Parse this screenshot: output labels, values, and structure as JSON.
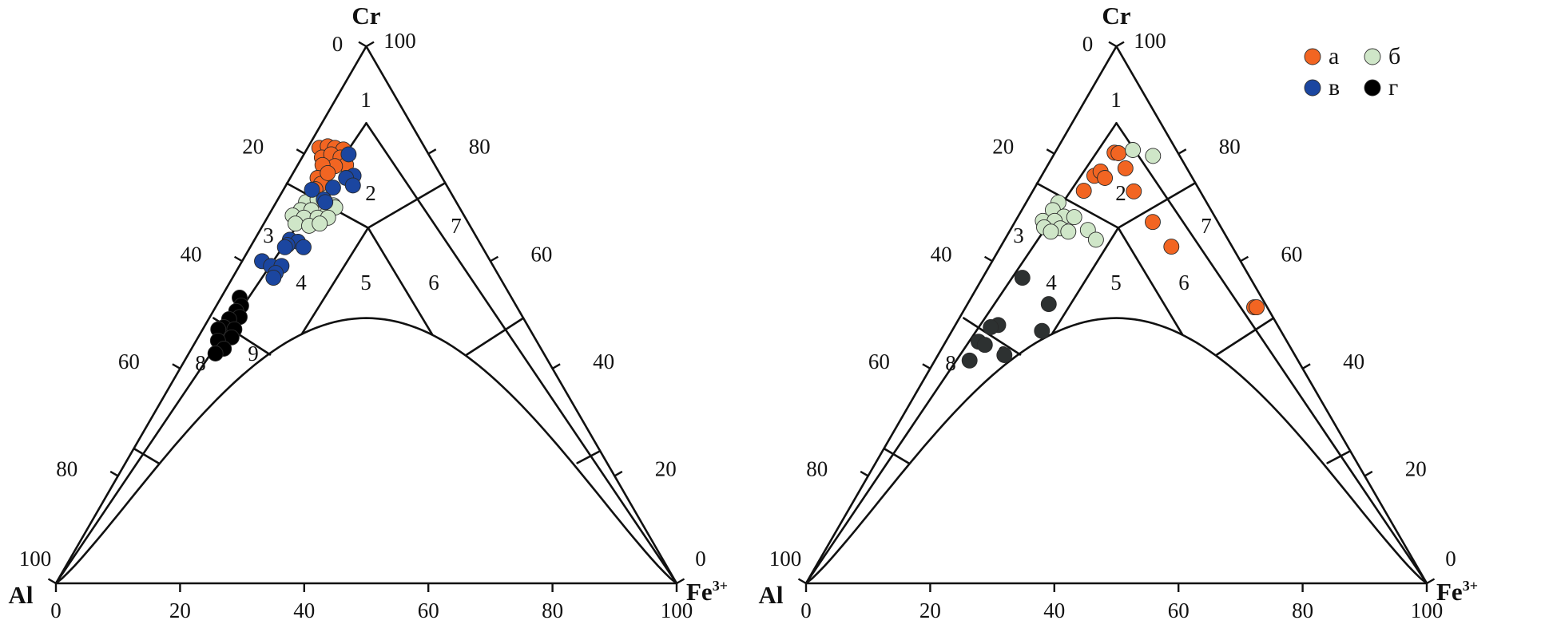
{
  "chart_data": [
    {
      "type": "ternary-scatter",
      "vertices": {
        "top": "Cr",
        "left": "Al",
        "right": "Fe",
        "right_sup": "3+"
      },
      "axis_ticks": {
        "left": [
          "0",
          "20",
          "40",
          "60",
          "80",
          "100"
        ],
        "right": [
          "100",
          "80",
          "60",
          "40",
          "20",
          "0"
        ],
        "bottom": [
          "0",
          "20",
          "40",
          "60",
          "80",
          "100"
        ]
      },
      "regions": [
        "1",
        "2",
        "3",
        "4",
        "5",
        "6",
        "7",
        "8",
        "9"
      ],
      "series": [
        {
          "name": "а",
          "color": "#f26522",
          "points": [
            [
              81.1,
              1.9
            ],
            [
              81.4,
              3.1
            ],
            [
              81.1,
              4.4
            ],
            [
              80.8,
              5.9
            ],
            [
              79.3,
              3.2
            ],
            [
              79.9,
              4.4
            ],
            [
              79.3,
              6.2
            ],
            [
              77.9,
              7.8
            ],
            [
              77.7,
              6.1
            ],
            [
              77.9,
              4.0
            ],
            [
              75.5,
              4.4
            ],
            [
              74.4,
              5.5
            ],
            [
              76.4,
              5.6
            ],
            [
              73.4,
              5.1
            ]
          ]
        },
        {
          "name": "б",
          "color": "#cfe6c8",
          "points": [
            [
              71.0,
              4.8
            ],
            [
              71.5,
              6.4
            ],
            [
              70.4,
              9.5
            ],
            [
              69.5,
              4.7
            ],
            [
              69.5,
              6.4
            ],
            [
              68.9,
              9.3
            ],
            [
              70.0,
              10.0
            ],
            [
              68.5,
              3.9
            ],
            [
              68.1,
              5.9
            ],
            [
              68.1,
              8.1
            ],
            [
              68.1,
              9.8
            ],
            [
              67.0,
              5.1
            ],
            [
              66.6,
              7.5
            ],
            [
              67.0,
              9.0
            ]
          ]
        },
        {
          "name": "в",
          "color": "#1b46a0",
          "points": [
            [
              79.9,
              7.2
            ],
            [
              75.9,
              10.0
            ],
            [
              75.5,
              9.0
            ],
            [
              74.1,
              10.8
            ],
            [
              73.7,
              7.8
            ],
            [
              73.3,
              4.6
            ],
            [
              71.5,
              7.4
            ],
            [
              71.0,
              7.9
            ],
            [
              64.0,
              5.7
            ],
            [
              63.6,
              7.2
            ],
            [
              62.6,
              8.6
            ],
            [
              63.0,
              5.8
            ],
            [
              62.6,
              5.6
            ],
            [
              60.0,
              3.2
            ],
            [
              59.1,
              5.1
            ],
            [
              59.1,
              6.8
            ],
            [
              57.8,
              6.5
            ],
            [
              56.9,
              6.6
            ]
          ]
        },
        {
          "name": "г",
          "color": "#000000",
          "points": [
            [
              53.2,
              3.0
            ],
            [
              51.7,
              4.0
            ],
            [
              50.7,
              3.7
            ],
            [
              49.6,
              4.8
            ],
            [
              49.2,
              3.3
            ],
            [
              47.7,
              3.2
            ],
            [
              47.3,
              2.5
            ],
            [
              47.3,
              5.1
            ],
            [
              45.8,
              5.4
            ],
            [
              45.2,
              3.5
            ],
            [
              43.7,
              5.2
            ],
            [
              42.8,
              4.3
            ]
          ]
        }
      ]
    },
    {
      "type": "ternary-scatter",
      "vertices": {
        "top": "Cr",
        "left": "Al",
        "right": "Fe",
        "right_sup": "3+"
      },
      "axis_ticks": {
        "left": [
          "0",
          "20",
          "40",
          "60",
          "80",
          "100"
        ],
        "right": [
          "100",
          "80",
          "60",
          "40",
          "20",
          "0"
        ],
        "bottom": [
          "0",
          "20",
          "40",
          "60",
          "80",
          "100"
        ]
      },
      "regions": [
        "1",
        "2",
        "3",
        "4",
        "5",
        "6",
        "7",
        "8",
        "9"
      ],
      "legend": {
        "position": "top-right",
        "items": [
          {
            "label": "а",
            "color": "#f26522"
          },
          {
            "label": "б",
            "color": "#cfe6c8"
          },
          {
            "label": "в",
            "color": "#1b46a0"
          },
          {
            "label": "г",
            "color": "#000000"
          }
        ]
      },
      "series": [
        {
          "name": "а",
          "color": "#f26522",
          "points": [
            [
              80.2,
              9.6
            ],
            [
              80.1,
              10.3
            ],
            [
              77.3,
              12.8
            ],
            [
              75.9,
              8.5
            ],
            [
              76.7,
              9.1
            ],
            [
              75.5,
              10.4
            ],
            [
              73.1,
              8.2
            ],
            [
              73.0,
              16.3
            ],
            [
              67.3,
              22.2
            ],
            [
              62.7,
              27.5
            ],
            [
              51.4,
              46.5
            ],
            [
              51.4,
              46.9
            ]
          ]
        },
        {
          "name": "б",
          "color": "#cfe6c8",
          "points": [
            [
              80.7,
              12.3
            ],
            [
              79.6,
              16.1
            ],
            [
              70.9,
              5.2
            ],
            [
              69.5,
              5.0
            ],
            [
              68.3,
              7.4
            ],
            [
              68.2,
              9.1
            ],
            [
              67.5,
              4.4
            ],
            [
              67.5,
              6.3
            ],
            [
              66.3,
              5.2
            ],
            [
              66.1,
              7.9
            ],
            [
              65.5,
              9.5
            ],
            [
              65.5,
              6.7
            ],
            [
              65.8,
              12.5
            ],
            [
              64.0,
              14.7
            ]
          ]
        },
        {
          "name": "г",
          "color": "#2d3131",
          "points": [
            [
              56.9,
              6.4
            ],
            [
              52.0,
              13.1
            ],
            [
              47.0,
              14.5
            ],
            [
              48.1,
              6.9
            ],
            [
              47.7,
              5.9
            ],
            [
              45.0,
              5.3
            ],
            [
              44.4,
              6.6
            ],
            [
              41.5,
              5.6
            ],
            [
              42.5,
              10.7
            ]
          ]
        }
      ]
    }
  ]
}
